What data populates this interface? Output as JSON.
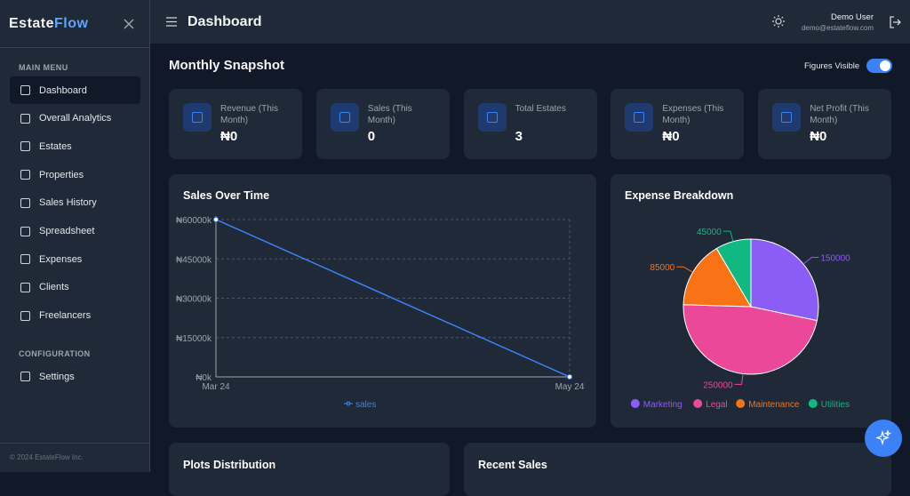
{
  "sidebar": {
    "brand_a": "Estate",
    "brand_b": "Flow",
    "main_menu_title": "MAIN MENU",
    "menu": [
      "Dashboard",
      "Overall Analytics",
      "Estates",
      "Properties",
      "Sales History",
      "Spreadsheet",
      "Expenses",
      "Clients",
      "Freelancers"
    ],
    "config_title": "CONFIGURATION",
    "config_menu": [
      "Settings"
    ],
    "footer": "© 2024 EstateFlow Inc."
  },
  "header": {
    "title": "Dashboard",
    "user_name": "Demo User",
    "user_email": "demo@estateflow.com"
  },
  "snapshot": {
    "title": "Monthly Snapshot",
    "toggle_label": "Figures Visible",
    "cards": [
      {
        "label": "Revenue (This Month)",
        "value": "₦0"
      },
      {
        "label": "Sales (This Month)",
        "value": 0
      },
      {
        "label": "Total Estates",
        "value": 3
      },
      {
        "label": "Expenses (This Month)",
        "value": "₦0"
      },
      {
        "label": "Net Profit (This Month)",
        "value": "₦0"
      }
    ]
  },
  "chart_data": [
    {
      "type": "line",
      "title": "Sales Over Time",
      "categories": [
        "Mar 24",
        "May 24"
      ],
      "series": [
        {
          "name": "sales",
          "color": "#3b82f6",
          "values": [
            60000,
            0
          ]
        }
      ],
      "ylim": [
        0,
        60000
      ],
      "yticks": [
        {
          "value": 0,
          "label": "₦0k"
        },
        {
          "value": 15000,
          "label": "₦15000k"
        },
        {
          "value": 30000,
          "label": "₦30000k"
        },
        {
          "value": 45000,
          "label": "₦45000k"
        },
        {
          "value": 60000,
          "label": "₦60000k"
        }
      ],
      "grid": true
    },
    {
      "type": "pie",
      "title": "Expense Breakdown",
      "categories": [
        "Marketing",
        "Legal",
        "Maintenance",
        "Utilities"
      ],
      "values": [
        150000,
        250000,
        85000,
        45000
      ],
      "colors": [
        "#8b5cf6",
        "#ec4899",
        "#f97316",
        "#10b981"
      ]
    }
  ],
  "bottom": {
    "plots_title": "Plots Distribution",
    "recent_title": "Recent Sales"
  }
}
